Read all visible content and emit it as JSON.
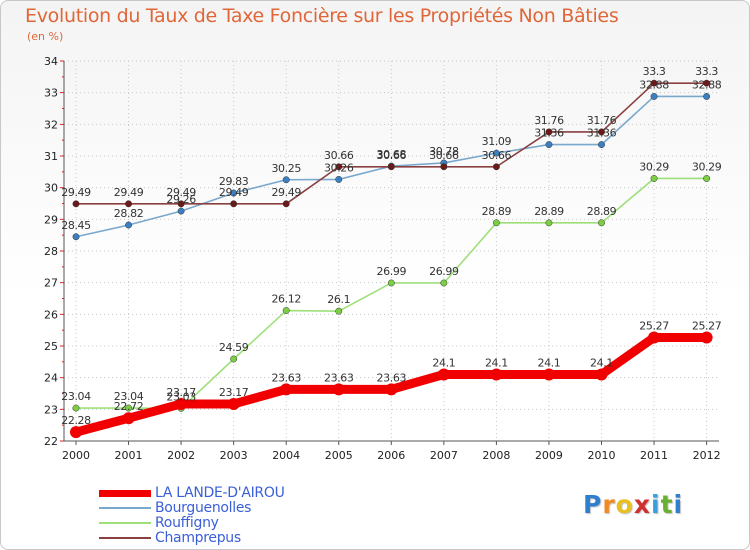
{
  "chart_data": {
    "type": "line",
    "title": "Evolution du Taux de Taxe Foncière sur les Propriétés Non Bâties",
    "subtitle": "(en %)",
    "categories": [
      "2000",
      "2001",
      "2002",
      "2003",
      "2004",
      "2005",
      "2006",
      "2007",
      "2008",
      "2009",
      "2010",
      "2011",
      "2012"
    ],
    "ylim": [
      22,
      34
    ],
    "yticks": [
      22,
      23,
      24,
      25,
      26,
      27,
      28,
      29,
      30,
      31,
      32,
      33,
      34
    ],
    "grid": true,
    "series": [
      {
        "name": "LA LANDE-D'AIROU",
        "color": "#f00000",
        "thick": true,
        "values": [
          22.28,
          22.72,
          23.17,
          23.17,
          23.63,
          23.63,
          23.63,
          24.1,
          24.1,
          24.1,
          24.1,
          25.27,
          25.27
        ],
        "labels": [
          "22.28",
          "22.72",
          "23.17",
          "23.17",
          "23.63",
          "23.63",
          "23.63",
          "24.1",
          "24.1",
          "24.1",
          "24.1",
          "25.27",
          "25.27"
        ]
      },
      {
        "name": "Bourguenolles",
        "color": "#7aa8cc",
        "marker": "#3c7fc0",
        "values": [
          28.45,
          28.82,
          29.26,
          29.83,
          30.25,
          30.26,
          30.68,
          30.78,
          31.09,
          31.36,
          31.36,
          32.88,
          32.88
        ],
        "labels": [
          "28.45",
          "28.82",
          "29.26",
          "29.83",
          "30.25",
          "30.26",
          "30.68",
          "30.78",
          "31.09",
          "31.36",
          "31.36",
          "32.88",
          "32.88"
        ]
      },
      {
        "name": "Rouffigny",
        "color": "#9de07a",
        "marker": "#7ccf45",
        "values": [
          23.04,
          23.04,
          23.03,
          24.59,
          26.12,
          26.1,
          26.99,
          26.99,
          28.89,
          28.89,
          28.89,
          30.29,
          30.29
        ],
        "labels": [
          "23.04",
          "23.04",
          "23.03",
          "24.59",
          "26.12",
          "26.1",
          "26.99",
          "26.99",
          "28.89",
          "28.89",
          "28.89",
          "30.29",
          "30.29"
        ]
      },
      {
        "name": "Champrepus",
        "color": "#8a4040",
        "marker": "#6b1a1a",
        "values": [
          29.49,
          29.49,
          29.49,
          29.49,
          29.49,
          30.66,
          30.66,
          30.66,
          30.66,
          31.76,
          31.76,
          33.3,
          33.3
        ],
        "labels": [
          "29.49",
          "29.49",
          "29.49",
          "29.49",
          "29.49",
          "30.66",
          "30.66",
          "30.66",
          "30.66",
          "31.76",
          "31.76",
          "33.3",
          "33.3"
        ]
      }
    ]
  },
  "logo": {
    "letters": [
      "P",
      "r",
      "o",
      "x",
      "i",
      "t",
      "i"
    ],
    "colors": [
      "#2f7fd0",
      "#f08a24",
      "#e8c020",
      "#d03030",
      "#39a0e0",
      "#68b030",
      "#2f7fd0"
    ]
  }
}
